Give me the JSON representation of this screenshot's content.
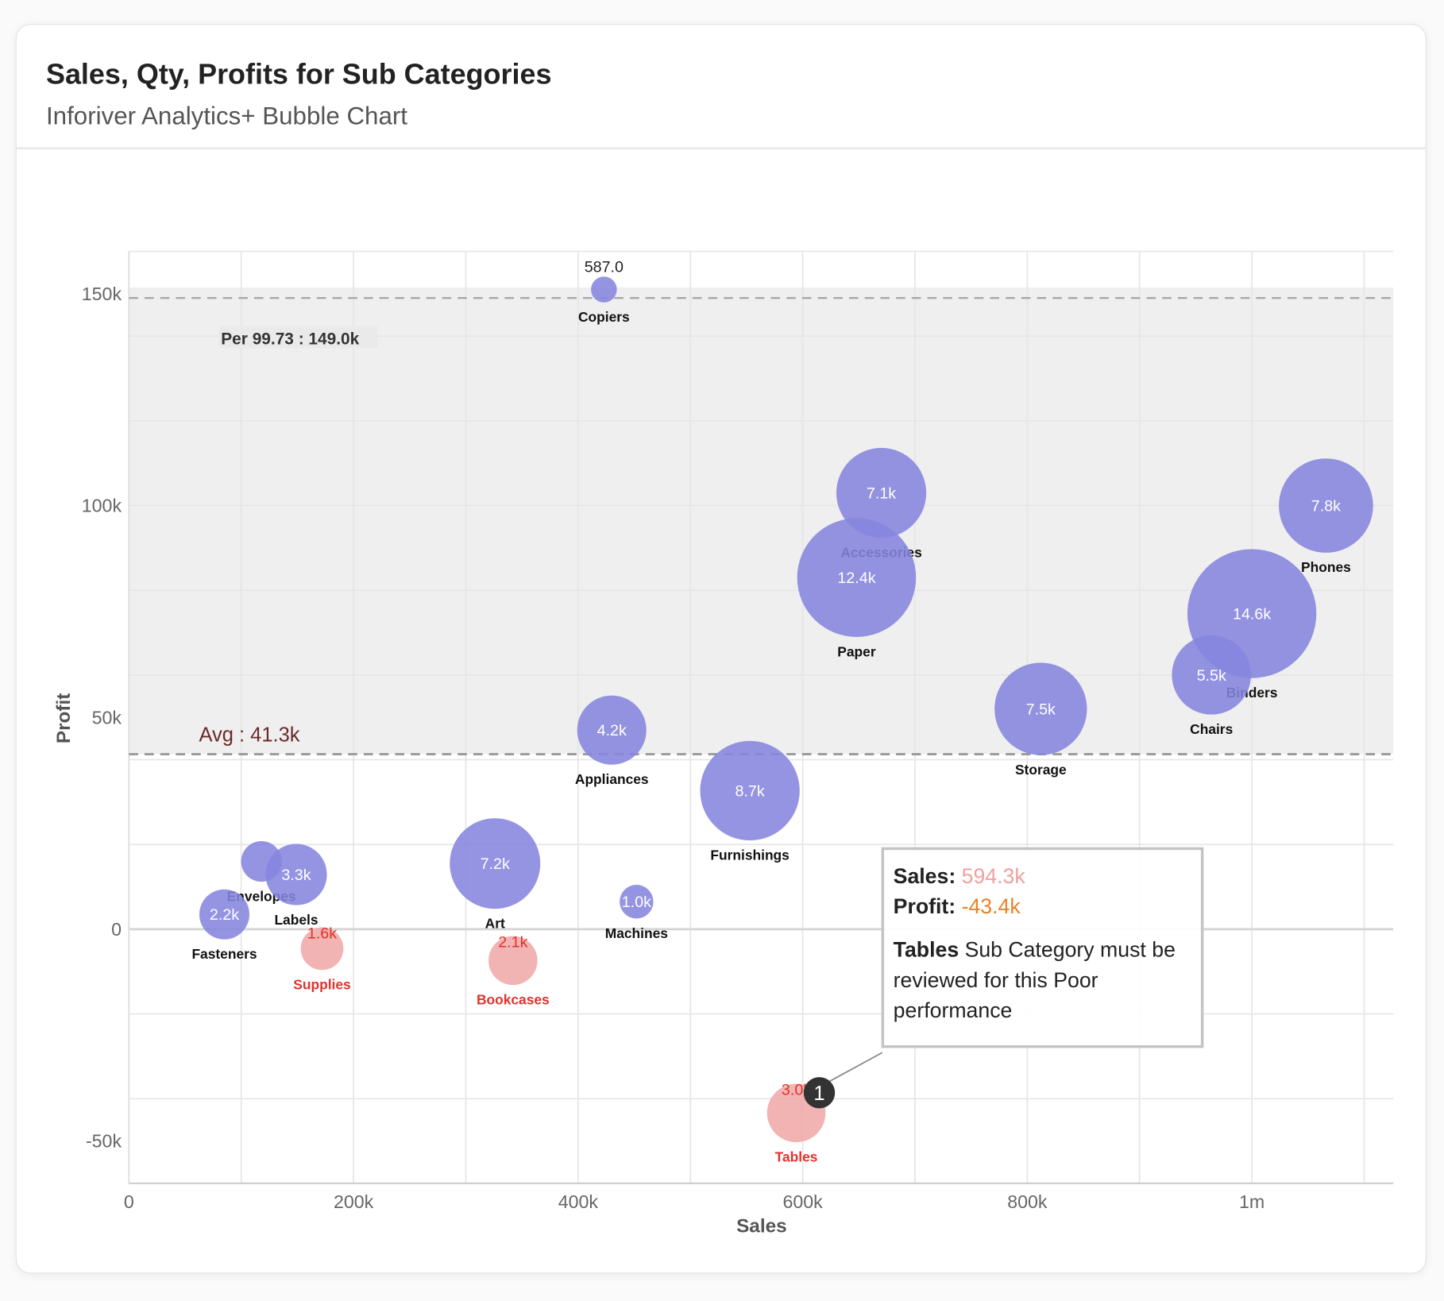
{
  "header": {
    "title": "Sales, Qty, Profits for Sub Categories",
    "subtitle": "Inforiver Analytics+ Bubble Chart"
  },
  "chart_data": {
    "type": "scatter",
    "variant": "bubble",
    "xlabel": "Sales",
    "ylabel": "Profit",
    "xlim": [
      0,
      1126000
    ],
    "ylim": [
      -60000,
      160000
    ],
    "x_ticks": [
      {
        "value": 0,
        "label": "0"
      },
      {
        "value": 200000,
        "label": "200k"
      },
      {
        "value": 400000,
        "label": "400k"
      },
      {
        "value": 600000,
        "label": "600k"
      },
      {
        "value": 800000,
        "label": "800k"
      },
      {
        "value": 1000000,
        "label": "1m"
      }
    ],
    "y_ticks": [
      {
        "value": 150000,
        "label": "150k"
      },
      {
        "value": 100000,
        "label": "100k"
      },
      {
        "value": 50000,
        "label": "50k"
      },
      {
        "value": 0,
        "label": "0"
      },
      {
        "value": -50000,
        "label": "-50k"
      }
    ],
    "grid": true,
    "size_measure": "Qty",
    "colors": {
      "positive": "#8585de",
      "negative": "#f0a9a9",
      "negative_text": "#e0332b",
      "label": "#111111",
      "avg_label": "#6b2a2a"
    },
    "points": [
      {
        "name": "Copiers",
        "sales": 423000,
        "profit": 151000,
        "qty": 587,
        "qty_label": "587.0"
      },
      {
        "name": "Accessories",
        "sales": 670000,
        "profit": 103000,
        "qty": 7100,
        "qty_label": "7.1k"
      },
      {
        "name": "Paper",
        "sales": 648000,
        "profit": 83000,
        "qty": 12400,
        "qty_label": "12.4k"
      },
      {
        "name": "Phones",
        "sales": 1066000,
        "profit": 100000,
        "qty": 7800,
        "qty_label": "7.8k"
      },
      {
        "name": "Binders",
        "sales": 1000000,
        "profit": 74500,
        "qty": 14600,
        "qty_label": "14.6k"
      },
      {
        "name": "Chairs",
        "sales": 964000,
        "profit": 60000,
        "qty": 5500,
        "qty_label": "5.5k"
      },
      {
        "name": "Storage",
        "sales": 812000,
        "profit": 52000,
        "qty": 7500,
        "qty_label": "7.5k"
      },
      {
        "name": "Appliances",
        "sales": 430000,
        "profit": 47000,
        "qty": 4200,
        "qty_label": "4.2k"
      },
      {
        "name": "Furnishings",
        "sales": 553000,
        "profit": 32700,
        "qty": 8700,
        "qty_label": "8.7k"
      },
      {
        "name": "Art",
        "sales": 326000,
        "profit": 15500,
        "qty": 7200,
        "qty_label": "7.2k"
      },
      {
        "name": "Envelopes",
        "sales": 118000,
        "profit": 16000,
        "qty": 1450,
        "qty_label": ""
      },
      {
        "name": "Labels",
        "sales": 149000,
        "profit": 12900,
        "qty": 3300,
        "qty_label": "3.3k"
      },
      {
        "name": "Fasteners",
        "sales": 85000,
        "profit": 3500,
        "qty": 2200,
        "qty_label": "2.2k"
      },
      {
        "name": "Machines",
        "sales": 452000,
        "profit": 6500,
        "qty": 1000,
        "qty_label": "1.0k"
      },
      {
        "name": "Supplies",
        "sales": 172000,
        "profit": -4600,
        "qty": 1600,
        "qty_label": "1.6k"
      },
      {
        "name": "Bookcases",
        "sales": 342000,
        "profit": -7400,
        "qty": 2100,
        "qty_label": "2.1k"
      },
      {
        "name": "Tables",
        "sales": 594300,
        "profit": -43400,
        "qty": 3000,
        "qty_label": "3.0k"
      }
    ],
    "reference_lines": {
      "average": {
        "value": 41300,
        "label": "Avg : 41.3k"
      },
      "percentile": {
        "value": 149000,
        "label": "Per 99.73 : 149.0k"
      }
    },
    "band": {
      "from": 41300,
      "to": 151500
    },
    "annotation": {
      "number": "1",
      "target": "Tables",
      "sales_label": "Sales:",
      "sales_value": "594.3k",
      "sales_color": "#f0a0a0",
      "profit_label": "Profit:",
      "profit_value": "-43.4k",
      "profit_color": "#e8832a",
      "bold_text": "Tables",
      "text": " Sub Category must be reviewed for this Poor performance"
    }
  }
}
